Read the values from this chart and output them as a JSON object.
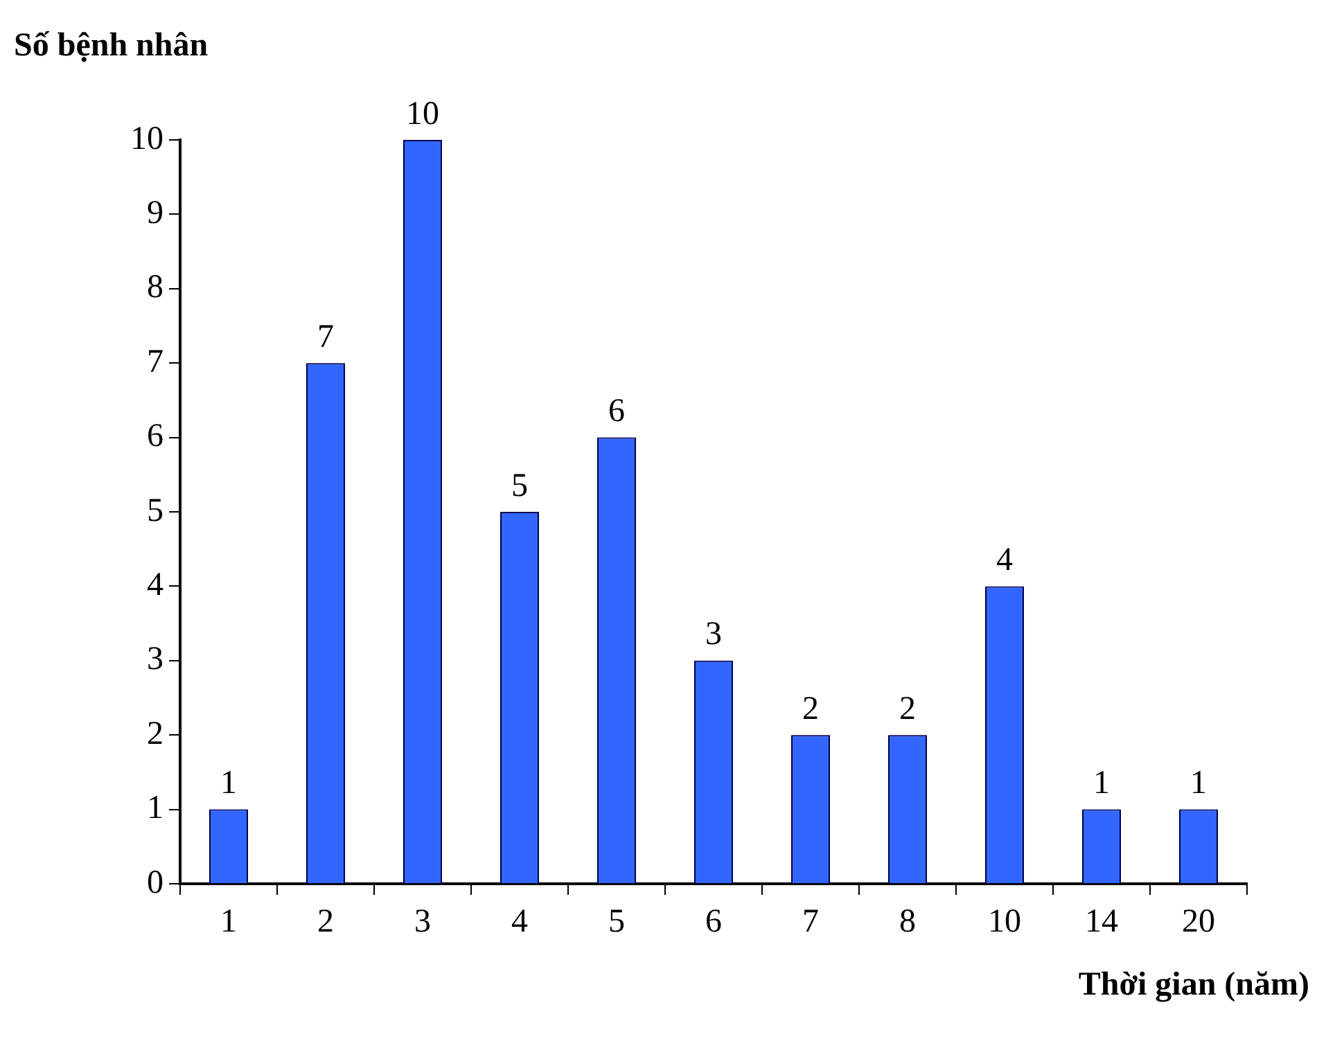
{
  "chart_data": {
    "type": "bar",
    "xlabel": "Thời gian (năm)",
    "ylabel": "Số bệnh nhân",
    "categories": [
      "1",
      "2",
      "3",
      "4",
      "5",
      "6",
      "7",
      "8",
      "10",
      "14",
      "20"
    ],
    "values": [
      1,
      7,
      10,
      5,
      6,
      3,
      2,
      2,
      4,
      1,
      1
    ],
    "color": "#3366ff",
    "ylim": [
      0,
      10
    ],
    "yticks": [
      0,
      1,
      2,
      3,
      4,
      5,
      6,
      7,
      8,
      9,
      10
    ],
    "grid": false,
    "legend": false,
    "data_labels": true
  }
}
